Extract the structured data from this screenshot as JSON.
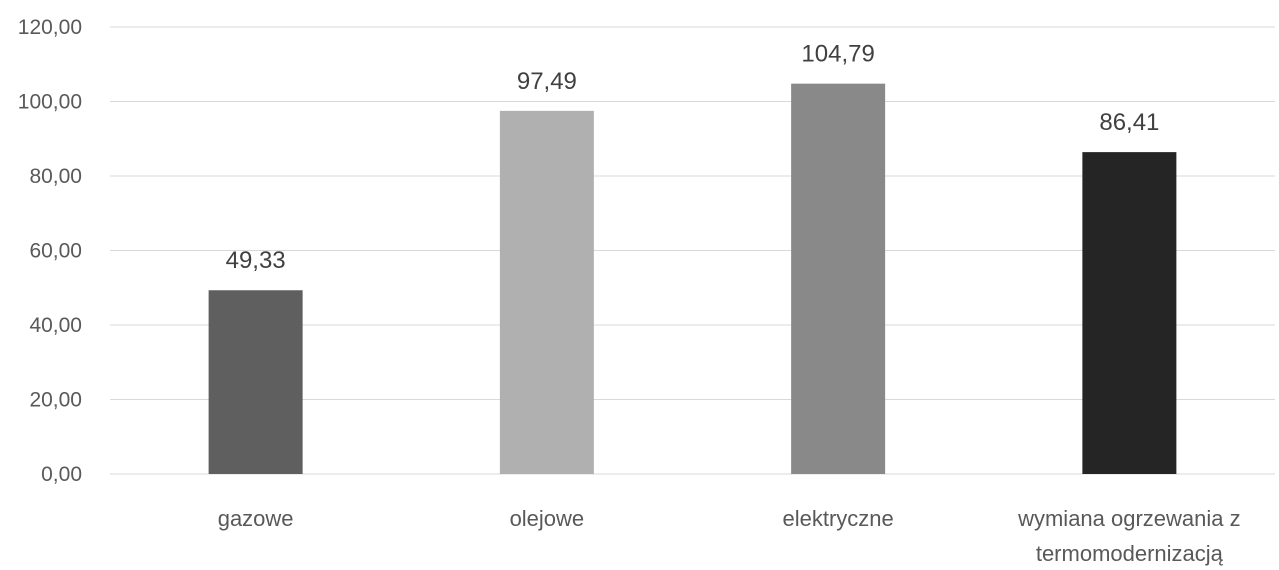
{
  "chart_data": {
    "type": "bar",
    "title": "",
    "xlabel": "",
    "ylabel": "",
    "categories": [
      "gazowe",
      "olejowe",
      "elektryczne",
      "wymiana ogrzewania z termomodernizacją"
    ],
    "category_label_lines": [
      [
        "gazowe"
      ],
      [
        "olejowe"
      ],
      [
        "elektryczne"
      ],
      [
        "wymiana ogrzewania z",
        "termomodernizacją"
      ]
    ],
    "values": [
      49.33,
      97.49,
      104.79,
      86.41
    ],
    "value_labels": [
      "49,33",
      "97,49",
      "104,79",
      "86,41"
    ],
    "bar_colors": [
      "#5f5f5f",
      "#b0b0b0",
      "#898989",
      "#252525"
    ],
    "ylim": [
      0,
      120
    ],
    "yticks": [
      0,
      20,
      40,
      60,
      80,
      100,
      120
    ],
    "ytick_labels": [
      "0,00",
      "20,00",
      "40,00",
      "60,00",
      "80,00",
      "100,00",
      "120,00"
    ],
    "grid": true,
    "gridline_color": "#d9d9d9",
    "legend": "none"
  }
}
